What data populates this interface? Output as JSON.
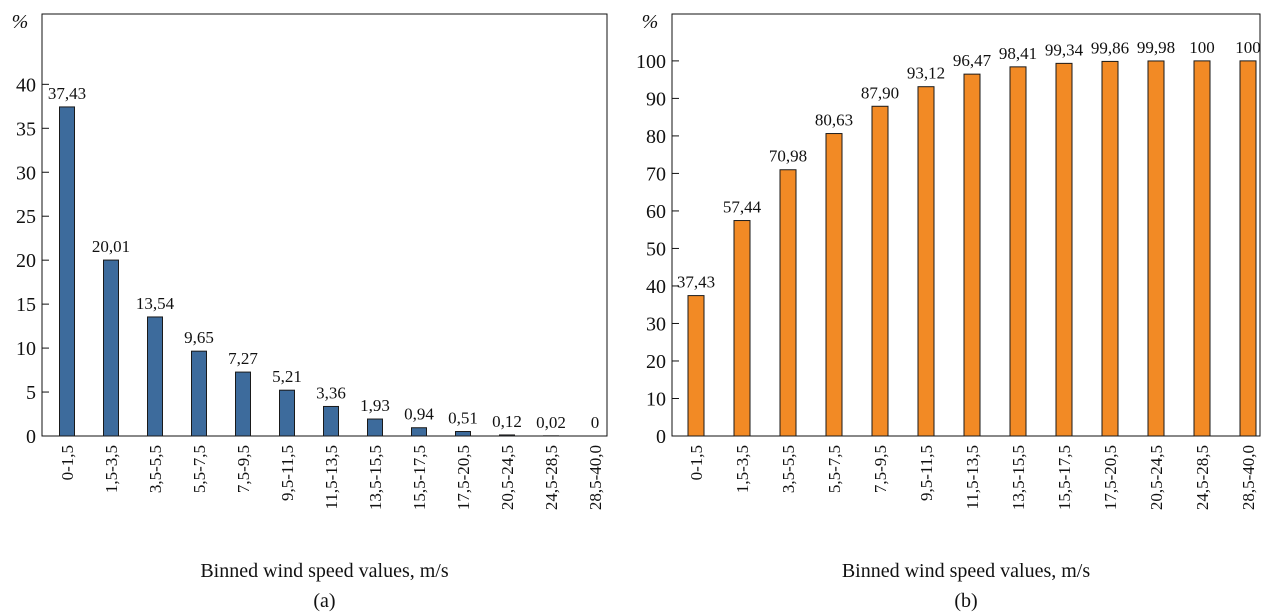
{
  "chart_data": [
    {
      "type": "bar",
      "ylabel": "%",
      "xlabel": "Binned wind speed values, m/s",
      "caption": "(a)",
      "categories": [
        "0-1,5",
        "1,5-3,5",
        "3,5-5,5",
        "5,5-7,5",
        "7,5-9,5",
        "9,5-11,5",
        "11,5-13,5",
        "13,5-15,5",
        "15,5-17,5",
        "17,5-20,5",
        "20,5-24,5",
        "24,5-28,5",
        "28,5-40,0"
      ],
      "values": [
        37.43,
        20.01,
        13.54,
        9.65,
        7.27,
        5.21,
        3.36,
        1.93,
        0.94,
        0.51,
        0.12,
        0.02,
        0
      ],
      "value_labels": [
        "37,43",
        "20,01",
        "13,54",
        "9,65",
        "7,27",
        "5,21",
        "3,36",
        "1,93",
        "0,94",
        "0,51",
        "0,12",
        "0,02",
        "0"
      ],
      "color": "#3d6b9c",
      "ylim": [
        0,
        48
      ],
      "yticks": [
        0,
        5,
        10,
        15,
        20,
        25,
        30,
        35,
        40
      ]
    },
    {
      "type": "bar",
      "ylabel": "%",
      "xlabel": "Binned wind speed values, m/s",
      "caption": "(b)",
      "categories": [
        "0-1,5",
        "1,5-3,5",
        "3,5-5,5",
        "5,5-7,5",
        "7,5-9,5",
        "9,5-11,5",
        "11,5-13,5",
        "13,5-15,5",
        "15,5-17,5",
        "17,5-20,5",
        "20,5-24,5",
        "24,5-28,5",
        "28,5-40,0"
      ],
      "values": [
        37.43,
        57.44,
        70.98,
        80.63,
        87.9,
        93.12,
        96.47,
        98.41,
        99.34,
        99.86,
        99.98,
        100,
        100
      ],
      "value_labels": [
        "37,43",
        "57,44",
        "70,98",
        "80,63",
        "87,90",
        "93,12",
        "96,47",
        "98,41",
        "99,34",
        "99,86",
        "99,98",
        "100",
        "100"
      ],
      "color": "#f28a25",
      "ylim": [
        0,
        112.5
      ],
      "yticks": [
        0,
        10,
        20,
        30,
        40,
        50,
        60,
        70,
        80,
        90,
        100
      ]
    }
  ]
}
